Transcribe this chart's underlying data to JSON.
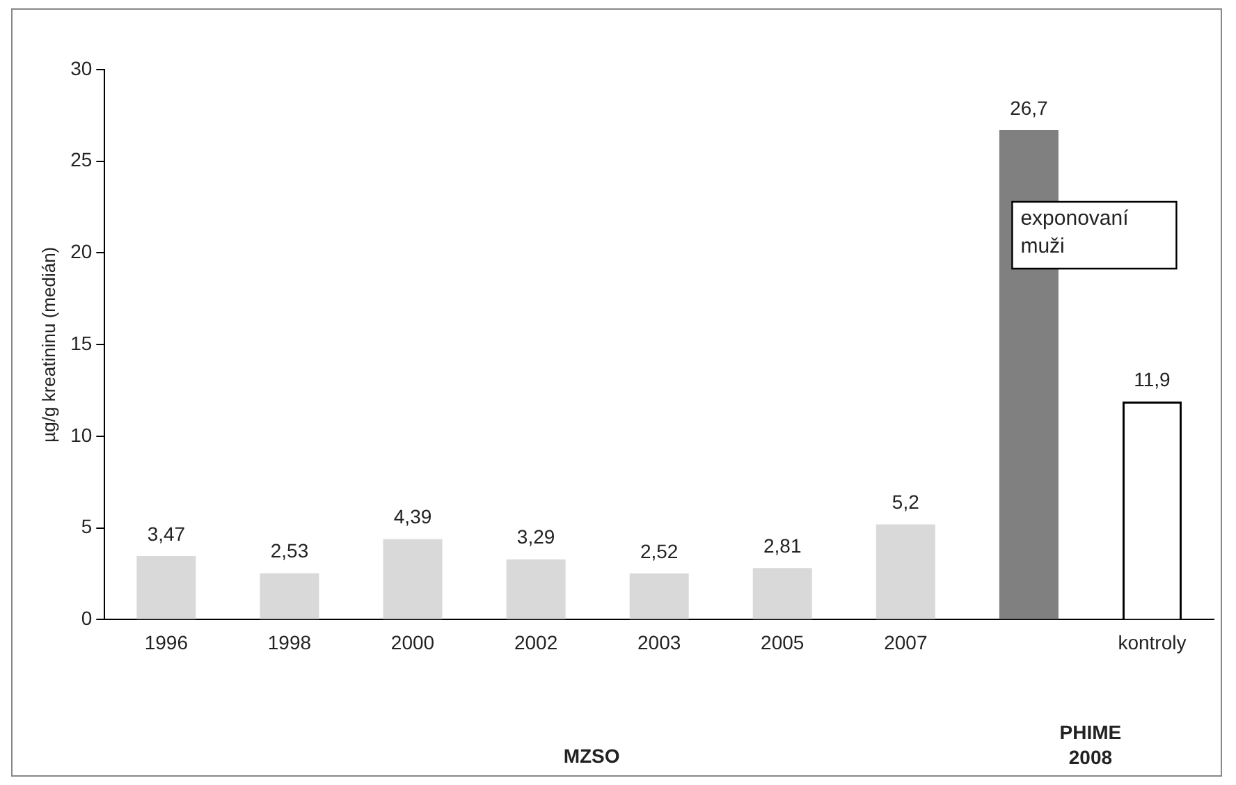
{
  "chart_data": {
    "type": "bar",
    "ylabel": "µg/g kreatininu (medián)",
    "categories": [
      "1996",
      "1998",
      "2000",
      "2002",
      "2003",
      "2005",
      "2007",
      null,
      "kontroly"
    ],
    "values": [
      3.47,
      2.53,
      4.39,
      3.29,
      2.52,
      2.81,
      5.2,
      26.7,
      11.9
    ],
    "colors": [
      "#d9d9d9",
      "#d9d9d9",
      "#d9d9d9",
      "#d9d9d9",
      "#d9d9d9",
      "#d9d9d9",
      "#d9d9d9",
      "#808080",
      "#ffffff"
    ],
    "value_labels": [
      "3,47",
      "2,53",
      "4,39",
      "3,29",
      "2,52",
      "2,81",
      "5,2",
      "26,7",
      "11,9"
    ],
    "ylim": [
      0,
      30
    ],
    "yticks": [
      0,
      5,
      10,
      15,
      20,
      25,
      30
    ],
    "grid": false,
    "legend": false,
    "annotations": [
      "exponovaní muži",
      "MZSO",
      "PHIME 2008"
    ]
  }
}
